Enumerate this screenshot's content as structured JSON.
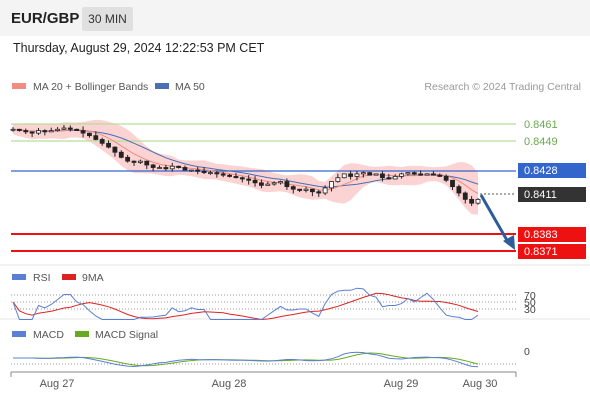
{
  "header": {
    "symbol": "EUR/GBP",
    "timeframe": "30 MIN",
    "datetime": "Thursday, August 29, 2024 12:22:53 PM CET"
  },
  "legend": {
    "ma20_label": "MA 20 + Bollinger Bands",
    "ma50_label": "MA 50",
    "copyright": "Research © 2024 Trading Central",
    "rsi_label": "RSI",
    "ma9_label": "9MA",
    "macd_label": "MACD",
    "macd_signal_label": "MACD Signal"
  },
  "colors": {
    "ma20": "#f28b82",
    "ma50": "#4a6fb3",
    "bollinger_fill": "#fbd3d3",
    "resistance_line": "#b7dd9a",
    "resistance_text": "#6aa84f",
    "pivot_line": "#3366cc",
    "support_line": "#ee1111",
    "current_price_bg": "#333333",
    "arrow": "#2e5c9a",
    "rsi": "#5b7fd4",
    "rsi_ma9": "#dd2222",
    "macd": "#5b7fd4",
    "macd_signal": "#66aa22"
  },
  "chart_data": {
    "type": "candlestick",
    "x_axis_labels": [
      "Aug 27",
      "Aug 28",
      "Aug 29",
      "Aug 30"
    ],
    "price_levels": [
      {
        "value": "0.8461",
        "kind": "resistance"
      },
      {
        "value": "0.8449",
        "kind": "resistance"
      },
      {
        "value": "0.8428",
        "kind": "pivot"
      },
      {
        "value": "0.8411",
        "kind": "current"
      },
      {
        "value": "0.8383",
        "kind": "support"
      },
      {
        "value": "0.8371",
        "kind": "support"
      }
    ],
    "ylim": [
      0.8365,
      0.8478
    ],
    "close_series": [
      0.8466,
      0.8465,
      0.8464,
      0.8463,
      0.8465,
      0.8464,
      0.8465,
      0.8466,
      0.8467,
      0.8466,
      0.8465,
      0.8463,
      0.8461,
      0.8458,
      0.8455,
      0.8452,
      0.8448,
      0.8444,
      0.8441,
      0.844,
      0.8441,
      0.8438,
      0.8436,
      0.8436,
      0.8435,
      0.8437,
      0.8436,
      0.8434,
      0.8434,
      0.8433,
      0.8432,
      0.8432,
      0.8431,
      0.843,
      0.8429,
      0.8428,
      0.8427,
      0.8426,
      0.8424,
      0.8422,
      0.8423,
      0.8424,
      0.8425,
      0.8421,
      0.8419,
      0.8418,
      0.8419,
      0.8417,
      0.8416,
      0.842,
      0.8425,
      0.8428,
      0.8431,
      0.8429,
      0.8431,
      0.8432,
      0.843,
      0.8431,
      0.8428,
      0.8427,
      0.8429,
      0.8431,
      0.8432,
      0.8431,
      0.843,
      0.8431,
      0.843,
      0.8429,
      0.8426,
      0.8421,
      0.8416,
      0.8411,
      0.8408,
      0.8411
    ],
    "rsi_levels": [
      "70",
      "50",
      "30"
    ],
    "macd_levels": [
      "0"
    ],
    "forecast": "down toward 0.8371"
  }
}
